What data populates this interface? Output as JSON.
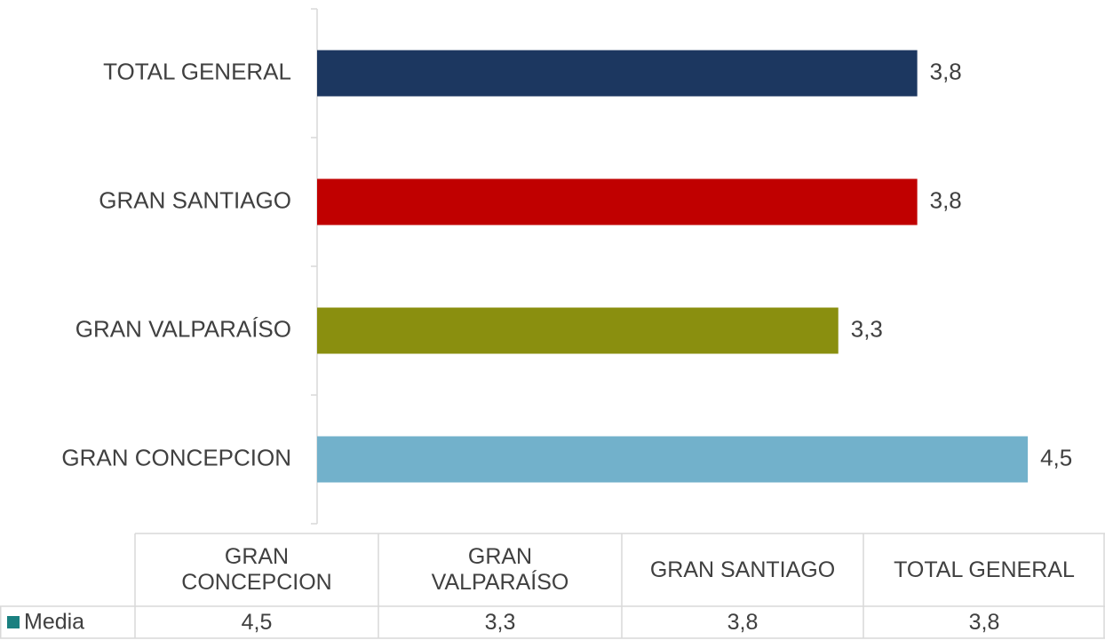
{
  "chart_data": {
    "type": "barh",
    "categories": [
      "GRAN CONCEPCION",
      "GRAN VALPARAÍSO",
      "GRAN SANTIAGO",
      "TOTAL GENERAL"
    ],
    "series": [
      {
        "name": "Media",
        "color": "#1a8080",
        "values": [
          4.5,
          3.3,
          3.8,
          3.8
        ],
        "value_labels": [
          "4,5",
          "3,3",
          "3,8",
          "3,8"
        ],
        "colors": [
          "#72b1cb",
          "#8a8f0f",
          "#c00000",
          "#1c3760"
        ]
      }
    ],
    "data_table": true
  }
}
